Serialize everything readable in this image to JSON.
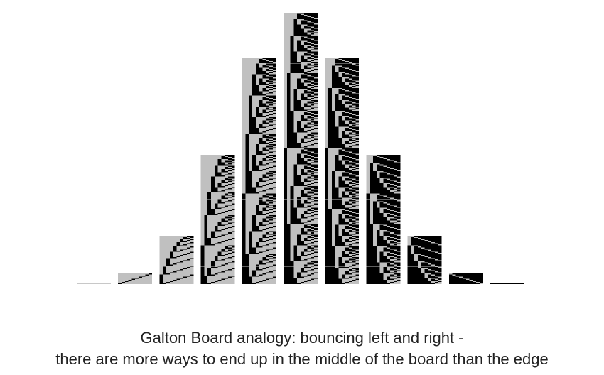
{
  "figure": {
    "rows": 10,
    "bin_counts": [
      1,
      10,
      45,
      120,
      210,
      252,
      210,
      120,
      45,
      10,
      1
    ],
    "colors": {
      "background": "#ffffff",
      "left_bounce": "#c0c0c0",
      "right_bounce": "#000000",
      "caption_text": "#222222"
    }
  },
  "caption": {
    "line1": "Galton Board analogy: bouncing left and right -",
    "line2": "there are more ways to end up in the middle of the board than the edge"
  }
}
